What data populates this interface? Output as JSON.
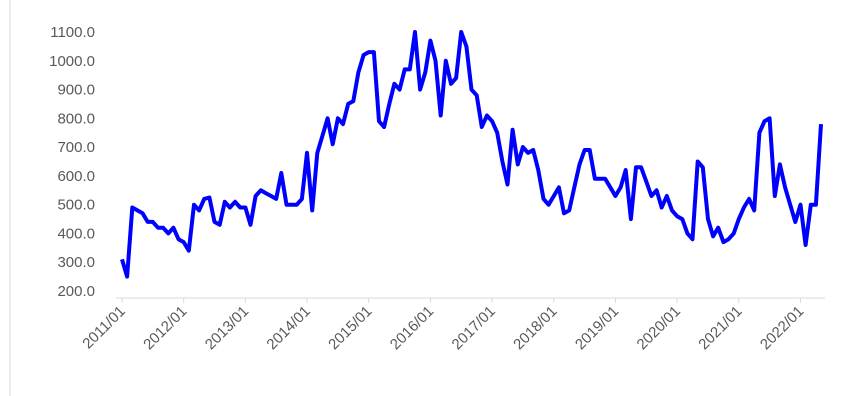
{
  "chart_data": {
    "type": "line",
    "categories": [
      "2011/01",
      null,
      null,
      null,
      null,
      null,
      null,
      null,
      null,
      null,
      null,
      null,
      "2012/01",
      null,
      null,
      null,
      null,
      null,
      null,
      null,
      null,
      null,
      null,
      null,
      "2013/01",
      null,
      null,
      null,
      null,
      null,
      null,
      null,
      null,
      null,
      null,
      null,
      "2014/01",
      null,
      null,
      null,
      null,
      null,
      null,
      null,
      null,
      null,
      null,
      null,
      "2015/01",
      null,
      null,
      null,
      null,
      null,
      null,
      null,
      null,
      null,
      null,
      null,
      "2016/01",
      null,
      null,
      null,
      null,
      null,
      null,
      null,
      null,
      null,
      null,
      null,
      "2017/01",
      null,
      null,
      null,
      null,
      null,
      null,
      null,
      null,
      null,
      null,
      null,
      "2018/01",
      null,
      null,
      null,
      null,
      null,
      null,
      null,
      null,
      null,
      null,
      null,
      "2019/01",
      null,
      null,
      null,
      null,
      null,
      null,
      null,
      null,
      null,
      null,
      null,
      "2020/01",
      null,
      null,
      null,
      null,
      null,
      null,
      null,
      null,
      null,
      null,
      null,
      "2021/01",
      null,
      null,
      null,
      null,
      null,
      null,
      null,
      null,
      null,
      null,
      null,
      "2022/01",
      null,
      null,
      null,
      null
    ],
    "values": [
      310,
      250,
      490,
      480,
      470,
      440,
      440,
      420,
      420,
      400,
      420,
      380,
      370,
      340,
      500,
      480,
      520,
      525,
      440,
      430,
      510,
      490,
      510,
      490,
      490,
      430,
      530,
      550,
      540,
      530,
      520,
      610,
      500,
      500,
      500,
      520,
      680,
      480,
      680,
      740,
      800,
      710,
      800,
      780,
      850,
      860,
      960,
      1020,
      1030,
      1030,
      790,
      770,
      850,
      920,
      900,
      970,
      970,
      1100,
      900,
      960,
      1070,
      1000,
      810,
      1000,
      920,
      940,
      1100,
      1050,
      900,
      880,
      770,
      810,
      790,
      750,
      650,
      570,
      760,
      640,
      700,
      680,
      690,
      620,
      520,
      500,
      530,
      560,
      470,
      480,
      560,
      640,
      690,
      690,
      590,
      590,
      590,
      560,
      530,
      560,
      620,
      450,
      630,
      630,
      580,
      530,
      550,
      490,
      530,
      480,
      460,
      450,
      400,
      380,
      650,
      630,
      450,
      390,
      420,
      370,
      380,
      400,
      450,
      490,
      520,
      480,
      750,
      790,
      800,
      530,
      640,
      560,
      500,
      440,
      500,
      360,
      500,
      500,
      780
    ],
    "color": "#0000ff",
    "ylim": [
      200,
      1100
    ],
    "yticks": [
      {
        "value": 200,
        "label": "200.0"
      },
      {
        "value": 300,
        "label": "300.0"
      },
      {
        "value": 400,
        "label": "400.0"
      },
      {
        "value": 500,
        "label": "500.0"
      },
      {
        "value": 600,
        "label": "600.0"
      },
      {
        "value": 700,
        "label": "700.0"
      },
      {
        "value": 800,
        "label": "800.0"
      },
      {
        "value": 900,
        "label": "900.0"
      },
      {
        "value": 1000,
        "label": "1000.0"
      },
      {
        "value": 1100,
        "label": "1100.0"
      }
    ]
  }
}
